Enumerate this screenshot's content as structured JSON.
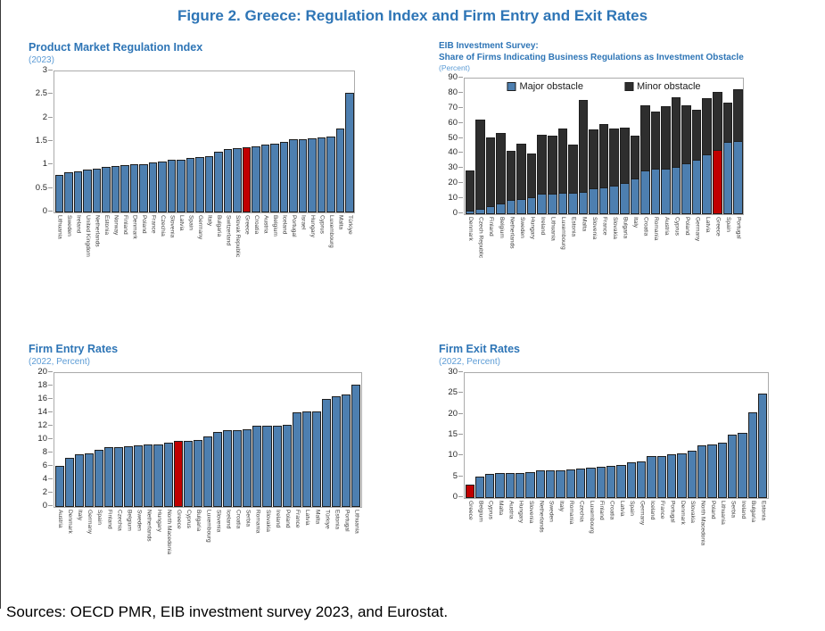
{
  "figure_title": "Figure 2. Greece: Regulation Index and Firm Entry and Exit Rates",
  "sources": "Sources: OECD PMR, EIB investment survey 2023, and Eurostat.",
  "colors": {
    "accent_blue": "#2e75b6",
    "subtitle_blue": "#5b9bd5",
    "bar_blue": "#4d7fb0",
    "bar_dark": "#2e2e2e",
    "bar_red": "#c00000"
  },
  "chart_data": [
    {
      "type": "bar",
      "title": "Product Market Regulation Index",
      "subtitle": "(2023)",
      "ylabel": "",
      "ylim": [
        0,
        3
      ],
      "ystep": 0.5,
      "grid": false,
      "highlight": "Greece",
      "categories": [
        "Lithuania",
        "Sweden",
        "Ireland",
        "United Kingdom",
        "Netherlands",
        "Estonia",
        "Norway",
        "Finland",
        "Denmark",
        "Poland",
        "France",
        "Czechia",
        "Slovenia",
        "Latvia",
        "Spain",
        "Germany",
        "Italy",
        "Bulgaria",
        "Switzerland",
        "Slovak Republic",
        "Greece",
        "Croatia",
        "Austria",
        "Belgium",
        "Iceland",
        "Portugal",
        "Israel",
        "Hungary",
        "Cyprus",
        "Luxembourg",
        "Malta",
        "Türkiye"
      ],
      "values": [
        0.8,
        0.85,
        0.88,
        0.91,
        0.94,
        0.97,
        0.99,
        1.01,
        1.02,
        1.03,
        1.06,
        1.08,
        1.13,
        1.13,
        1.15,
        1.17,
        1.19,
        1.3,
        1.35,
        1.36,
        1.38,
        1.4,
        1.44,
        1.46,
        1.5,
        1.55,
        1.56,
        1.58,
        1.6,
        1.62,
        1.79,
        2.54
      ]
    },
    {
      "type": "stacked-bar",
      "title_line1": "EIB Investment Survey:",
      "title_line2": "Share of Firms Indicating Business Regulations as Investment Obstacle",
      "subtitle": "(Percent)",
      "ylim": [
        0,
        90
      ],
      "ystep": 10,
      "grid": false,
      "legend": [
        "Major obstacle",
        "Minor obstacle"
      ],
      "legend_position": "top-inside",
      "highlight": "Greece",
      "categories": [
        "Denmark",
        "Czech Republic",
        "Finland",
        "Belgium",
        "Netherlands",
        "Sweden",
        "Hungary",
        "Ireland",
        "Lithuania",
        "Luxembourg",
        "Estonia",
        "Malta",
        "Slovenia",
        "France",
        "Slovakia",
        "Bulgaria",
        "Italy",
        "Croatia",
        "Romania",
        "Austria",
        "Cyprus",
        "Poland",
        "Germany",
        "Latvia",
        "Greece",
        "Spain",
        "Portugal"
      ],
      "series": [
        {
          "name": "Major obstacle",
          "values": [
            2.5,
            3.5,
            5.5,
            7,
            9.5,
            10,
            11,
            13.5,
            13.5,
            14.5,
            14.5,
            15,
            17,
            17.5,
            19,
            21,
            23.5,
            29,
            30,
            30,
            31.5,
            33.5,
            36,
            39.5,
            42.5,
            48,
            48.5
          ]
        },
        {
          "name": "Minor obstacle",
          "values": [
            26.5,
            59.5,
            45.5,
            47,
            32.5,
            36.5,
            29,
            39,
            38.5,
            42.5,
            31.5,
            61,
            39,
            42.5,
            38,
            36.5,
            28.5,
            43.5,
            38,
            41.5,
            46,
            38.5,
            33,
            37.5,
            38.5,
            26,
            34.5
          ]
        }
      ]
    },
    {
      "type": "bar",
      "title": "Firm Entry Rates",
      "subtitle": "(2022, Percent)",
      "ylim": [
        0,
        20
      ],
      "ystep": 2,
      "grid": false,
      "highlight": "Greece",
      "categories": [
        "Austria",
        "Denmark",
        "Italy",
        "Germany",
        "Spain",
        "Finland",
        "Czechia",
        "Belgium",
        "Sweden",
        "Netherlands",
        "Hungary",
        "North Macedonia",
        "Greece",
        "Cyprus",
        "Bulgaria",
        "Luxembourg",
        "Slovenia",
        "Iceland",
        "Croatia",
        "Serbia",
        "Romania",
        "Slovakia",
        "Ireland",
        "Poland",
        "France",
        "Latvia",
        "Malta",
        "Türkiye",
        "Estonia",
        "Portugal",
        "Lithuania"
      ],
      "values": [
        6.2,
        7.4,
        7.9,
        8.0,
        8.6,
        8.9,
        9.0,
        9.1,
        9.2,
        9.3,
        9.4,
        9.6,
        9.9,
        9.9,
        10.0,
        10.5,
        11.2,
        11.5,
        11.5,
        11.6,
        12.1,
        12.1,
        12.2,
        12.3,
        14.2,
        14.3,
        14.3,
        16.2,
        16.6,
        16.8,
        18.3
      ]
    },
    {
      "type": "bar",
      "title": "Firm Exit Rates",
      "subtitle": "(2022, Percent)",
      "ylim": [
        0,
        30
      ],
      "ystep": 5,
      "grid": false,
      "highlight": "Greece",
      "categories": [
        "Greece",
        "Belgium",
        "Cyprus",
        "Malta",
        "Austria",
        "Hungary",
        "Slovenia",
        "Netherlands",
        "Sweden",
        "Italy",
        "Romania",
        "Czechia",
        "Luxembourg",
        "Finland",
        "Croatia",
        "Latvia",
        "Spain",
        "Germany",
        "Iceland",
        "France",
        "Portugal",
        "Denmark",
        "Slovakia",
        "North Macedonia",
        "Poland",
        "Lithuania",
        "Serbia",
        "Ireland",
        "Bulgaria",
        "Estonia"
      ],
      "values": [
        3.2,
        5.2,
        5.8,
        5.9,
        5.9,
        6.1,
        6.3,
        6.6,
        6.6,
        6.7,
        6.9,
        7.0,
        7.2,
        7.4,
        7.8,
        7.9,
        8.6,
        8.8,
        10.0,
        10.1,
        10.4,
        10.7,
        11.3,
        12.7,
        12.9,
        13.3,
        15.3,
        15.6,
        20.5,
        25.1
      ]
    }
  ]
}
